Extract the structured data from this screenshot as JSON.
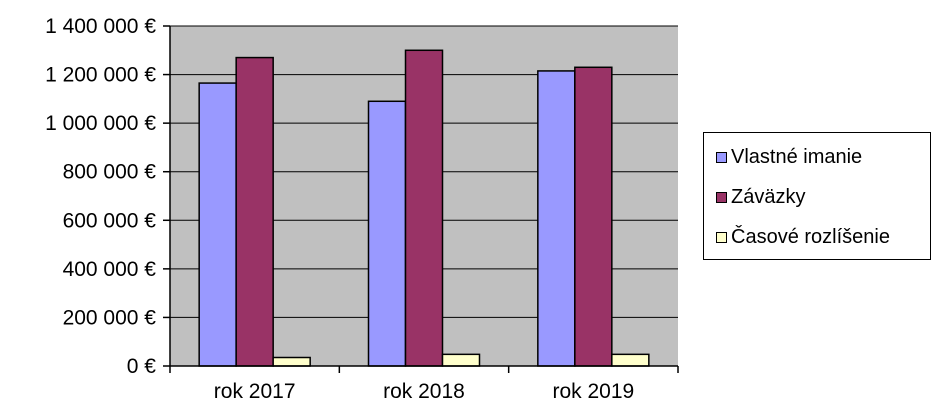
{
  "chart_data": {
    "type": "bar",
    "categories": [
      "rok 2017",
      "rok 2018",
      "rok 2019"
    ],
    "series": [
      {
        "name": "Vlastné imanie",
        "values": [
          1165000,
          1090000,
          1215000
        ],
        "color": "#9999ff"
      },
      {
        "name": "Záväzky",
        "values": [
          1270000,
          1300000,
          1230000
        ],
        "color": "#993366"
      },
      {
        "name": "Časové rozlíšenie",
        "values": [
          35000,
          48000,
          48000
        ],
        "color": "#ffffcc"
      }
    ],
    "y_ticks": [
      "0 €",
      "200 000 €",
      "400 000 €",
      "600 000 €",
      "800 000 €",
      "1 000 000 €",
      "1 200 000 €",
      "1 400 000 €"
    ],
    "ylim": [
      0,
      1400000
    ],
    "grid": true,
    "legend_position": "right",
    "plot_background": "#c0c0c0"
  }
}
